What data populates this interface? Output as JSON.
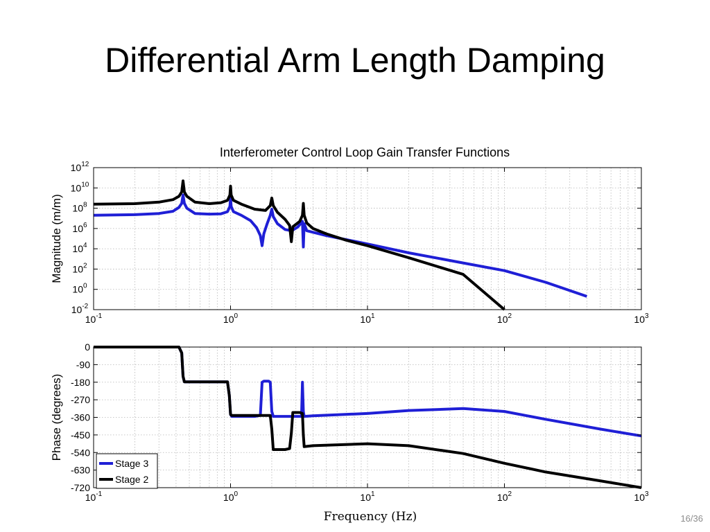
{
  "slide": {
    "title": "Differential Arm Length Damping",
    "page_number": "16/36"
  },
  "chart_data": {
    "type": "line",
    "title": "Interferometer Control Loop Gain Transfer Functions",
    "xlabel": "Frequency (Hz)",
    "x_scale": "log",
    "xlim": [
      0.1,
      1000
    ],
    "x_ticks": [
      {
        "base": "10",
        "exp": "-1",
        "value": 0.1
      },
      {
        "base": "10",
        "exp": "0",
        "value": 1
      },
      {
        "base": "10",
        "exp": "1",
        "value": 10
      },
      {
        "base": "10",
        "exp": "2",
        "value": 100
      },
      {
        "base": "10",
        "exp": "3",
        "value": 1000
      }
    ],
    "grid": true,
    "legend": {
      "position": "bottom-left",
      "entries": [
        {
          "name": "Stage 3",
          "color": "#1f1fd6"
        },
        {
          "name": "Stage 2",
          "color": "#000000"
        }
      ]
    },
    "colors": {
      "stage3": "#1f1fd6",
      "stage2": "#000000"
    },
    "magnitude": {
      "ylabel": "Magnitude (m/m)",
      "y_scale": "log",
      "ylim": [
        0.01,
        1000000000000.0
      ],
      "y_ticks": [
        {
          "base": "10",
          "exp": "-2",
          "value": 0.01
        },
        {
          "base": "10",
          "exp": "0",
          "value": 1
        },
        {
          "base": "10",
          "exp": "2",
          "value": 100
        },
        {
          "base": "10",
          "exp": "4",
          "value": 10000.0
        },
        {
          "base": "10",
          "exp": "6",
          "value": 1000000.0
        },
        {
          "base": "10",
          "exp": "8",
          "value": 100000000.0
        },
        {
          "base": "10",
          "exp": "10",
          "value": 10000000000.0
        },
        {
          "base": "10",
          "exp": "12",
          "value": 1000000000000.0
        }
      ],
      "series": [
        {
          "name": "Stage 3",
          "color": "#1f1fd6",
          "x": [
            0.1,
            0.2,
            0.3,
            0.38,
            0.42,
            0.44,
            0.45,
            0.46,
            0.48,
            0.55,
            0.7,
            0.85,
            0.95,
            0.99,
            1.0,
            1.01,
            1.05,
            1.2,
            1.4,
            1.55,
            1.65,
            1.7,
            1.75,
            1.85,
            1.95,
            2.0,
            2.05,
            2.2,
            2.5,
            2.8,
            3.1,
            3.35,
            3.4,
            3.45,
            3.6,
            5,
            10,
            20,
            50,
            100,
            200,
            400
          ],
          "y": [
            20000000.0,
            23000000.0,
            30000000.0,
            50000000.0,
            120000000.0,
            300000000.0,
            2000000000.0,
            300000000.0,
            100000000.0,
            30000000.0,
            26000000.0,
            28000000.0,
            45000000.0,
            150000000.0,
            1000000000.0,
            150000000.0,
            45000000.0,
            20000000.0,
            6000000.0,
            1200000.0,
            200000.0,
            20000.0,
            300000.0,
            3000000.0,
            20000000.0,
            80000000.0,
            15000000.0,
            3000000.0,
            800000.0,
            600000.0,
            1400000.0,
            5000000.0,
            15000.0,
            3000000.0,
            600000.0,
            200000.0,
            30000.0,
            4000.0,
            400.0,
            70,
            5,
            0.2
          ]
        },
        {
          "name": "Stage 2",
          "color": "#000000",
          "x": [
            0.1,
            0.2,
            0.3,
            0.38,
            0.42,
            0.44,
            0.45,
            0.46,
            0.48,
            0.55,
            0.7,
            0.85,
            0.95,
            0.99,
            1.0,
            1.01,
            1.05,
            1.2,
            1.5,
            1.8,
            1.95,
            2.0,
            2.05,
            2.2,
            2.5,
            2.7,
            2.78,
            2.85,
            3.0,
            3.2,
            3.35,
            3.4,
            3.45,
            3.6,
            4,
            5,
            7,
            10,
            20,
            50,
            100
          ],
          "y": [
            250000000.0,
            280000000.0,
            400000000.0,
            700000000.0,
            1500000000.0,
            4000000000.0,
            50000000000.0,
            4000000000.0,
            1500000000.0,
            400000000.0,
            280000000.0,
            350000000.0,
            600000000.0,
            2000000000.0,
            15000000000.0,
            2000000000.0,
            600000000.0,
            250000000.0,
            80000000.0,
            60000000.0,
            180000000.0,
            1000000000.0,
            180000000.0,
            40000000.0,
            8000000.0,
            2000000.0,
            50000.0,
            1500000.0,
            2500000.0,
            5000000.0,
            20000000.0,
            300000000.0,
            20000000.0,
            3500000.0,
            1000000.0,
            300000.0,
            70000.0,
            20000.0,
            1300.0,
            30,
            0.01
          ]
        }
      ]
    },
    "phase": {
      "ylabel": "Phase (degrees)",
      "ylim": [
        -720,
        0
      ],
      "y_ticks": [
        0,
        -90,
        -180,
        -270,
        -360,
        -450,
        -540,
        -630,
        -720
      ],
      "series": [
        {
          "name": "Stage 3",
          "color": "#1f1fd6",
          "x": [
            0.1,
            0.2,
            0.3,
            0.42,
            0.44,
            0.45,
            0.46,
            0.48,
            0.7,
            0.95,
            0.98,
            1.0,
            1.02,
            1.05,
            1.5,
            1.65,
            1.7,
            1.75,
            1.9,
            1.95,
            2.0,
            2.05,
            2.5,
            3.3,
            3.35,
            3.4,
            3.45,
            4,
            10,
            20,
            50,
            100,
            200,
            500,
            1000
          ],
          "y": [
            0,
            0,
            0,
            0,
            -30,
            -150,
            -178,
            -178,
            -178,
            -178,
            -250,
            -345,
            -355,
            -355,
            -355,
            -350,
            -180,
            -175,
            -175,
            -180,
            -330,
            -355,
            -355,
            -355,
            -180,
            -330,
            -355,
            -352,
            -340,
            -325,
            -315,
            -330,
            -370,
            -420,
            -455
          ]
        },
        {
          "name": "Stage 2",
          "color": "#000000",
          "x": [
            0.1,
            0.2,
            0.3,
            0.42,
            0.44,
            0.45,
            0.46,
            0.48,
            0.7,
            0.95,
            0.98,
            1.0,
            1.02,
            1.05,
            1.5,
            1.8,
            1.95,
            2.0,
            2.05,
            2.5,
            2.7,
            2.78,
            2.85,
            3.2,
            3.35,
            3.4,
            3.45,
            4,
            10,
            20,
            50,
            100,
            200,
            500,
            1000
          ],
          "y": [
            0,
            0,
            0,
            0,
            -30,
            -150,
            -178,
            -178,
            -178,
            -178,
            -250,
            -345,
            -350,
            -350,
            -350,
            -350,
            -350,
            -420,
            -525,
            -525,
            -520,
            -440,
            -335,
            -335,
            -340,
            -450,
            -510,
            -505,
            -495,
            -505,
            -545,
            -595,
            -640,
            -685,
            -720
          ]
        }
      ]
    }
  }
}
